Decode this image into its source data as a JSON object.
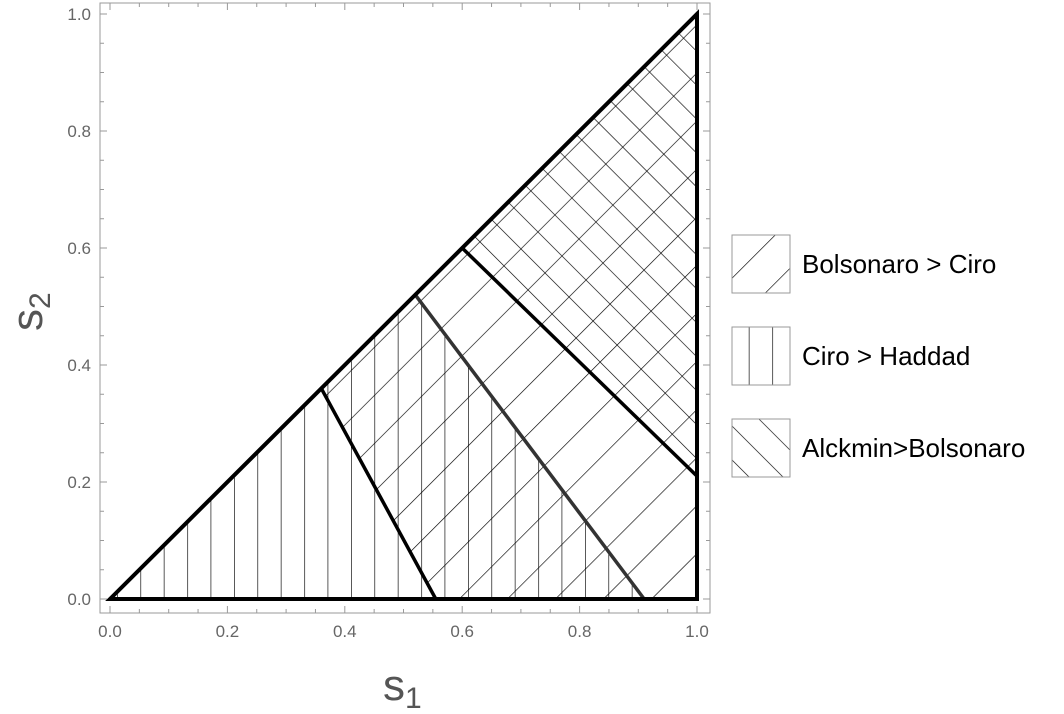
{
  "chart_data": {
    "type": "region",
    "xlabel": "s",
    "xlabel_sub": "1",
    "ylabel": "s",
    "ylabel_sub": "2",
    "xlim": [
      0,
      1
    ],
    "ylim": [
      0,
      1
    ],
    "x_ticks": [
      "0.0",
      "0.2",
      "0.4",
      "0.6",
      "0.8",
      "1.0"
    ],
    "y_ticks": [
      "0.0",
      "0.2",
      "0.4",
      "0.6",
      "0.8",
      "1.0"
    ],
    "grid": false,
    "legend_position": "right",
    "domain": [
      [
        0,
        0
      ],
      [
        1,
        1
      ],
      [
        1,
        0
      ]
    ],
    "boundaries": [
      {
        "name": "Bolsonaro = Ciro",
        "from": [
          0.36,
          0.36
        ],
        "to": [
          0.555,
          0.0
        ]
      },
      {
        "name": "Ciro = Haddad",
        "from": [
          0.52,
          0.52
        ],
        "to": [
          0.91,
          0.0
        ]
      },
      {
        "name": "Alckmin = Bolsonaro",
        "from": [
          0.6,
          0.6
        ],
        "to": [
          1.0,
          0.21
        ]
      }
    ],
    "regions": [
      {
        "label": "Bolsonaro > Ciro",
        "pattern": "diagonal-down",
        "polygon": [
          [
            0.36,
            0.36
          ],
          [
            1.0,
            1.0
          ],
          [
            1.0,
            0.0
          ],
          [
            0.555,
            0.0
          ]
        ]
      },
      {
        "label": "Ciro > Haddad",
        "pattern": "vertical",
        "polygon": [
          [
            0.0,
            0.0
          ],
          [
            0.52,
            0.52
          ],
          [
            0.91,
            0.0
          ]
        ]
      },
      {
        "label": "Alckmin>Bolsonaro",
        "pattern": "diagonal-up",
        "polygon": [
          [
            0.6,
            0.6
          ],
          [
            1.0,
            1.0
          ],
          [
            1.0,
            0.21
          ]
        ]
      }
    ]
  }
}
